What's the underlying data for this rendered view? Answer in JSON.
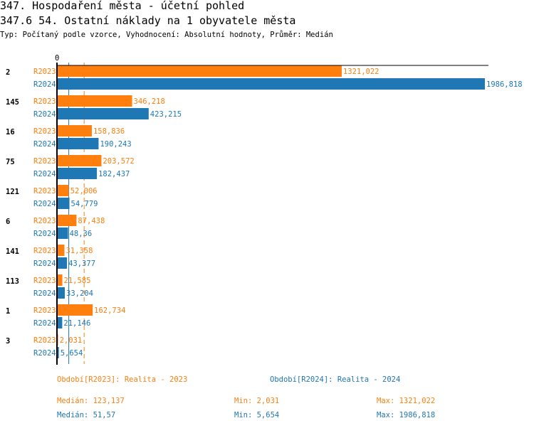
{
  "header": {
    "title": "347. Hospodaření města - účetní pohled",
    "subtitle": "347.6 54. Ostatní náklady na 1 obyvatele města",
    "info": "Typ: Počítaný podle vzorce, Vyhodnocení: Absolutní hodnoty, Průměr: Medián"
  },
  "chart_data": {
    "type": "bar",
    "orientation": "horizontal",
    "axis_zero_label": "0",
    "xlim": [
      0,
      1986.818
    ],
    "colors": {
      "R2023": "#ff7f0e",
      "R2024": "#1f77b4"
    },
    "categories": [
      "2",
      "145",
      "16",
      "75",
      "121",
      "6",
      "141",
      "113",
      "1",
      "3"
    ],
    "series": [
      {
        "name": "R2023",
        "values": [
          1321.022,
          346.218,
          158.836,
          203.572,
          52.006,
          87.438,
          31.358,
          21.585,
          162.734,
          2.031
        ],
        "labels": [
          "1321,022",
          "346,218",
          "158,836",
          "203,572",
          "52,006",
          "87,438",
          "31,358",
          "21,585",
          "162,734",
          "2,031"
        ]
      },
      {
        "name": "R2024",
        "values": [
          1986.818,
          423.215,
          190.243,
          182.437,
          54.779,
          48.36,
          43.377,
          33.204,
          21.146,
          5.654
        ],
        "labels": [
          "1986,818",
          "423,215",
          "190,243",
          "182,437",
          "54,779",
          "48,36",
          "43,377",
          "33,204",
          "21,146",
          "5,654"
        ]
      }
    ],
    "median_lines": {
      "R2023": 123.137,
      "R2024": 51.57
    }
  },
  "legend": {
    "r2023": {
      "title": "Období[R2023]: Realita - 2023",
      "median": "Medián: 123,137",
      "min": "Min: 2,031",
      "max": "Max: 1321,022"
    },
    "r2024": {
      "title": "Období[R2024]: Realita - 2024",
      "median": "Medián: 51,57",
      "min": "Min: 5,654",
      "max": "Max: 1986,818"
    }
  }
}
